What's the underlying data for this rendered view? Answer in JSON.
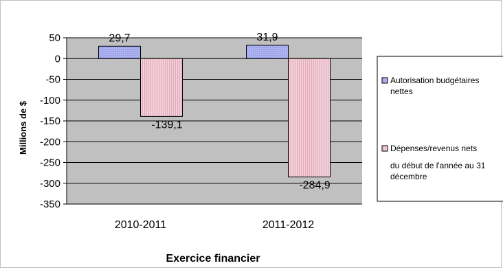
{
  "chart_data": {
    "type": "bar",
    "categories": [
      "2010-2011",
      "2011-2012"
    ],
    "series": [
      {
        "name": "Autorisation budgétaires nettes",
        "values": [
          29.7,
          31.9
        ]
      },
      {
        "name": "Dépenses/revenus nets du début de l'année au 31 décembre",
        "values": [
          -139.1,
          -284.9
        ]
      }
    ],
    "data_labels": [
      [
        "29,7",
        "31,9"
      ],
      [
        "-139,1",
        "-284,9"
      ]
    ],
    "legend_lines": [
      [
        "Autorisation budgétaires",
        "nettes"
      ],
      [
        "Dépenses/revenus nets",
        "du début de l'année au 31",
        "décembre"
      ]
    ],
    "title": "",
    "xlabel": "Exercice financier",
    "ylabel": "Millions de $",
    "ylim": [
      -350,
      50
    ],
    "yticks": [
      50,
      0,
      -50,
      -100,
      -150,
      -200,
      -250,
      -300,
      -350
    ],
    "ytick_labels": [
      "50",
      "0",
      "-50",
      "-100",
      "-150",
      "-200",
      "-250",
      "-300",
      "-350"
    ],
    "grid": true,
    "legend_position": "right",
    "colors": {
      "plot_background": "#c0c0c0",
      "series_1_fill": "#aeb3f0",
      "series_1_pattern": "#8c92e4",
      "series_2_fill": "#f1cfd8",
      "series_2_pattern": "#e2a9b8",
      "bar_border": "#000000",
      "gridline": "#000000"
    }
  }
}
